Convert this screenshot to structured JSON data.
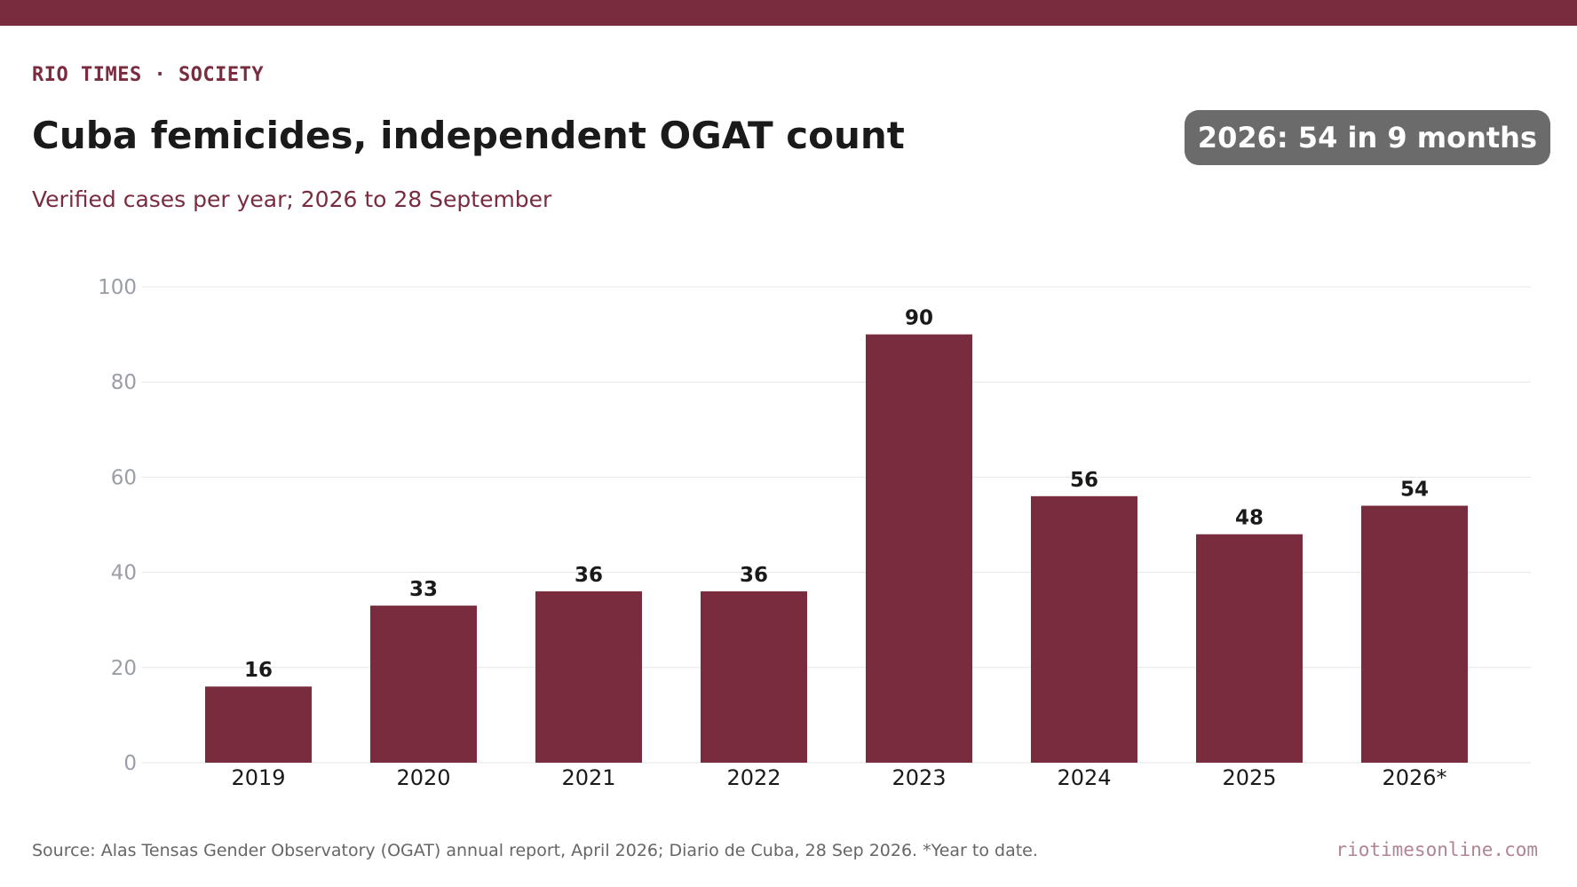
{
  "header": {
    "kicker": "RIO TIMES · SOCIETY",
    "title": "Cuba femicides, independent OGAT count",
    "subtitle": "Verified cases per year; 2026 to 28 September",
    "badge": "2026: 54 in 9 months"
  },
  "footer": {
    "source": "Source: Alas Tensas Gender Observatory (OGAT) annual report, April 2026; Diario de Cuba, 28 Sep 2026. *Year to date.",
    "site": "riotimesonline.com"
  },
  "colors": {
    "accent": "#7a2c3f",
    "bar": "#7a2c3f",
    "badge_bg": "#6b6b6b",
    "grid": "#e6e6e6",
    "tick_text": "#9a9ea6"
  },
  "chart_data": {
    "type": "bar",
    "categories": [
      "2019",
      "2020",
      "2021",
      "2022",
      "2023",
      "2024",
      "2025",
      "2026*"
    ],
    "values": [
      16,
      33,
      36,
      36,
      90,
      56,
      48,
      54
    ],
    "ylim": [
      0,
      100
    ],
    "yticks": [
      0,
      20,
      40,
      60,
      80,
      100
    ],
    "grid": true,
    "data_labels": true
  }
}
